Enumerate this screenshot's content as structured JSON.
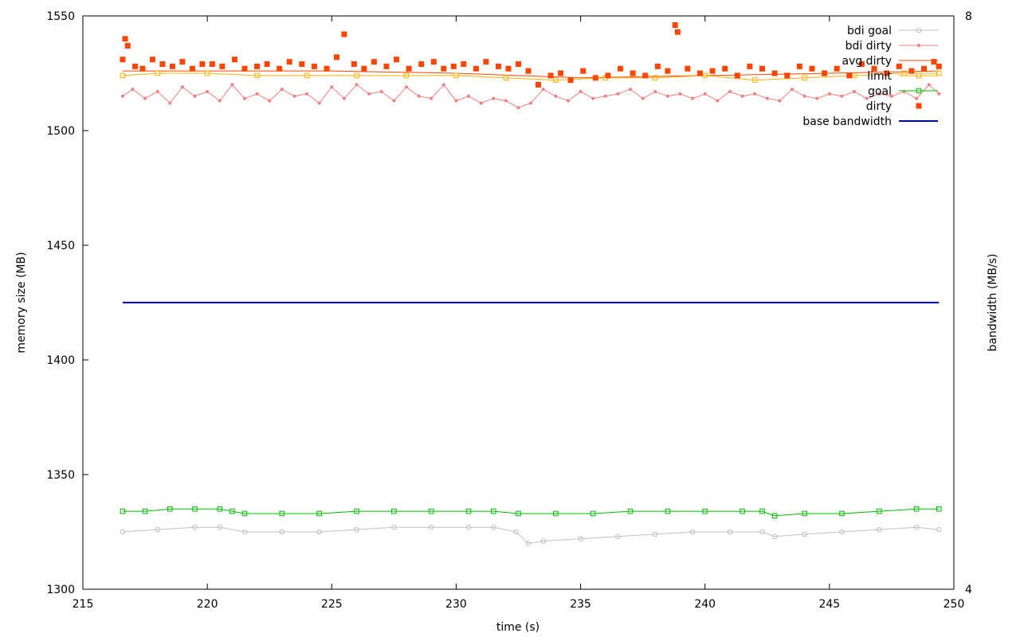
{
  "chart_data": {
    "type": "line",
    "xlabel": "time (s)",
    "ylabel": "memory size (MB)",
    "y2label": "bandwidth (MB/s)",
    "xlim": [
      215,
      250
    ],
    "ylim": [
      1300,
      1550
    ],
    "y2lim": [
      4,
      8
    ],
    "x_ticks": [
      "215",
      "220",
      "225",
      "230",
      "235",
      "240",
      "245",
      "250"
    ],
    "y_ticks": [
      "1300",
      "1350",
      "1400",
      "1450",
      "1500",
      "1550"
    ],
    "y2_ticks": [
      "4",
      "8"
    ],
    "grid": false,
    "legend_position": "top-right",
    "legend_entries": [
      "bdi goal",
      "bdi dirty",
      "avg dirty",
      "limit",
      "goal",
      "dirty",
      "base bandwidth"
    ],
    "series": [
      {
        "name": "bdi goal",
        "color": "#c0c0c0",
        "marker": "open-circle",
        "axis": "left",
        "x": [
          216.6,
          218,
          219.5,
          220.5,
          221.5,
          223,
          224.5,
          226,
          227.5,
          229,
          230.5,
          231.5,
          232.4,
          232.9,
          233.5,
          235,
          236.5,
          238,
          239.5,
          241,
          242.3,
          242.8,
          244,
          245.5,
          247,
          248.5,
          249.4
        ],
        "y": [
          1325,
          1326,
          1327,
          1327,
          1325,
          1325,
          1325,
          1326,
          1327,
          1327,
          1327,
          1327,
          1325,
          1320,
          1321,
          1322,
          1323,
          1324,
          1325,
          1325,
          1325,
          1323,
          1324,
          1325,
          1326,
          1327,
          1326
        ]
      },
      {
        "name": "bdi dirty",
        "color": "#f08080",
        "marker": "dot",
        "axis": "left",
        "x": [
          216.6,
          217,
          217.5,
          218,
          218.5,
          219,
          219.5,
          220,
          220.5,
          221,
          221.5,
          222,
          222.5,
          223,
          223.5,
          224,
          224.5,
          225,
          225.5,
          226,
          226.5,
          227,
          227.5,
          228,
          228.5,
          229,
          229.5,
          230,
          230.5,
          231,
          231.5,
          232,
          232.5,
          233,
          233.5,
          234,
          234.5,
          235,
          235.5,
          236,
          236.5,
          237,
          237.5,
          238,
          238.5,
          239,
          239.5,
          240,
          240.5,
          241,
          241.5,
          242,
          242.5,
          243,
          243.5,
          244,
          244.5,
          245,
          245.5,
          246,
          246.5,
          247,
          247.5,
          248,
          248.5,
          249,
          249.4
        ],
        "y": [
          1515,
          1518,
          1514,
          1517,
          1512,
          1519,
          1515,
          1517,
          1513,
          1520,
          1514,
          1516,
          1513,
          1518,
          1515,
          1516,
          1512,
          1519,
          1514,
          1520,
          1516,
          1517,
          1513,
          1519,
          1515,
          1514,
          1520,
          1513,
          1515,
          1512,
          1514,
          1513,
          1510,
          1512,
          1518,
          1515,
          1513,
          1517,
          1514,
          1515,
          1516,
          1518,
          1514,
          1517,
          1515,
          1516,
          1514,
          1516,
          1513,
          1517,
          1515,
          1516,
          1514,
          1513,
          1518,
          1515,
          1514,
          1516,
          1515,
          1517,
          1514,
          1516,
          1515,
          1517,
          1514,
          1520,
          1516
        ]
      },
      {
        "name": "avg dirty",
        "color": "#ff4500",
        "marker": "none",
        "axis": "left",
        "x": [
          216.6,
          220,
          225,
          230,
          232.5,
          235,
          240,
          245,
          249.4
        ],
        "y": [
          1526,
          1526,
          1526,
          1525,
          1524,
          1523,
          1524,
          1525,
          1526
        ]
      },
      {
        "name": "limit",
        "color": "#ffb000",
        "marker": "open-square",
        "axis": "left",
        "x": [
          216.6,
          218,
          220,
          222,
          224,
          226,
          228,
          230,
          232,
          234,
          236,
          238,
          240,
          242,
          244,
          246,
          248,
          249.4
        ],
        "y": [
          1524,
          1525,
          1525,
          1524,
          1524,
          1524,
          1524,
          1524,
          1523,
          1522,
          1523,
          1523,
          1524,
          1522,
          1523,
          1524,
          1525,
          1525
        ]
      },
      {
        "name": "goal",
        "color": "#00bb00",
        "marker": "open-square",
        "axis": "left",
        "x": [
          216.6,
          217.5,
          218.5,
          219.5,
          220.5,
          221,
          221.5,
          223,
          224.5,
          226,
          227.5,
          229,
          230.5,
          231.5,
          232.5,
          234,
          235.5,
          237,
          238.5,
          240,
          241.5,
          242.3,
          242.8,
          244,
          245.5,
          247,
          248.5,
          249.4
        ],
        "y": [
          1334,
          1334,
          1335,
          1335,
          1335,
          1334,
          1333,
          1333,
          1333,
          1334,
          1334,
          1334,
          1334,
          1334,
          1333,
          1333,
          1333,
          1334,
          1334,
          1334,
          1334,
          1334,
          1332,
          1333,
          1333,
          1334,
          1335,
          1335
        ]
      },
      {
        "name": "dirty",
        "color": "#ff4500",
        "marker": "filled-square",
        "axis": "left",
        "x": [
          216.6,
          216.7,
          216.8,
          217.1,
          217.4,
          217.8,
          218.2,
          218.6,
          219,
          219.4,
          219.8,
          220.2,
          220.6,
          221.1,
          221.5,
          222,
          222.4,
          222.9,
          223.3,
          223.8,
          224.3,
          224.8,
          225.2,
          225.5,
          225.9,
          226.3,
          226.7,
          227.2,
          227.6,
          228.1,
          228.6,
          229.1,
          229.5,
          229.9,
          230.3,
          230.8,
          231.2,
          231.7,
          232.1,
          232.5,
          232.9,
          233.3,
          233.8,
          234.2,
          234.6,
          235.1,
          235.6,
          236.1,
          236.6,
          237.1,
          237.6,
          238.1,
          238.5,
          238.8,
          238.9,
          239.3,
          239.8,
          240.3,
          240.8,
          241.3,
          241.8,
          242.3,
          242.8,
          243.3,
          243.8,
          244.3,
          244.8,
          245.3,
          245.8,
          246.3,
          246.8,
          247.3,
          247.8,
          248.3,
          248.8,
          249.2,
          249.4
        ],
        "y": [
          1531,
          1540,
          1537,
          1528,
          1527,
          1531,
          1529,
          1528,
          1530,
          1527,
          1529,
          1529,
          1528,
          1531,
          1527,
          1528,
          1529,
          1527,
          1530,
          1529,
          1528,
          1527,
          1532,
          1542,
          1529,
          1527,
          1530,
          1528,
          1531,
          1527,
          1529,
          1530,
          1527,
          1528,
          1529,
          1527,
          1530,
          1528,
          1527,
          1529,
          1526,
          1520,
          1524,
          1525,
          1522,
          1526,
          1523,
          1524,
          1527,
          1525,
          1524,
          1528,
          1526,
          1546,
          1543,
          1527,
          1525,
          1526,
          1527,
          1524,
          1528,
          1527,
          1525,
          1524,
          1528,
          1527,
          1525,
          1527,
          1524,
          1529,
          1527,
          1525,
          1528,
          1526,
          1527,
          1530,
          1528
        ]
      },
      {
        "name": "base bandwidth",
        "color": "#0000dd",
        "marker": "none",
        "axis": "right",
        "x": [
          216.6,
          220,
          225,
          230,
          235,
          240,
          245,
          249.4
        ],
        "y": [
          6.0,
          6.0,
          6.0,
          6.0,
          6.0,
          6.0,
          6.0,
          6.0
        ]
      }
    ]
  }
}
